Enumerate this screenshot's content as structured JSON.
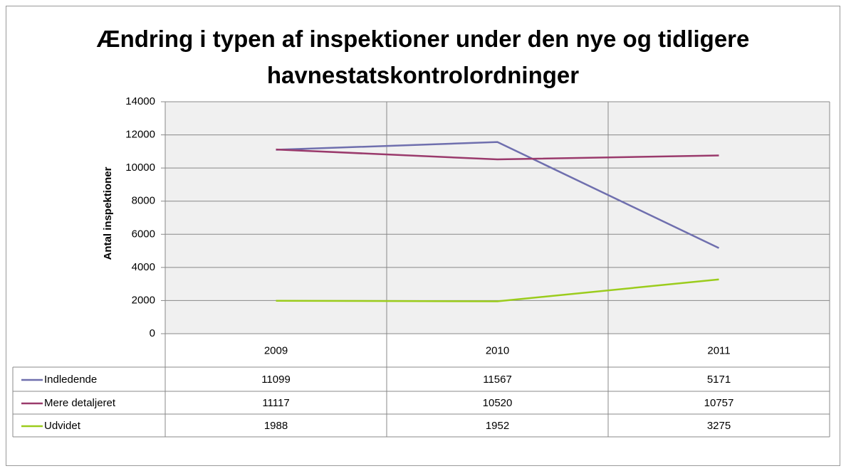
{
  "chart_data": {
    "type": "line",
    "title": "Ændring i typen af inspektioner under den nye og tidligere havnestatskontrolordninger",
    "y_label": "Antal inspektioner",
    "categories": [
      "2009",
      "2010",
      "2011"
    ],
    "series": [
      {
        "name": "Indledende",
        "color": "#6f6fae",
        "values": [
          11099,
          11567,
          5171
        ]
      },
      {
        "name": "Mere detaljeret",
        "color": "#9a3a6c",
        "values": [
          11117,
          10520,
          10757
        ]
      },
      {
        "name": "Udvidet",
        "color": "#9bcc1c",
        "values": [
          1988,
          1952,
          3275
        ]
      }
    ],
    "ylim": [
      0,
      14000
    ],
    "yticks": [
      0,
      2000,
      4000,
      6000,
      8000,
      10000,
      12000,
      14000
    ],
    "grid": true
  }
}
